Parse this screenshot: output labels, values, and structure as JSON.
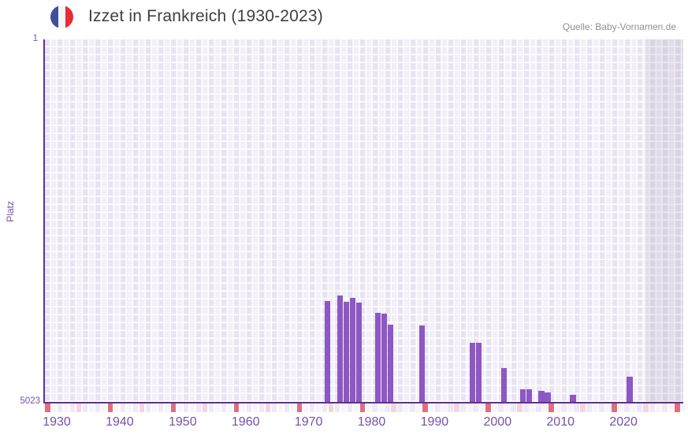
{
  "header": {
    "title": "Izzet in Frankreich (1930-2023)",
    "flag_icon": "france-flag",
    "source": "Quelle: Baby-Vornamen.de"
  },
  "chart_data": {
    "type": "bar",
    "title": "Izzet in Frankreich (1930-2023)",
    "xlabel": "",
    "ylabel": "Platz",
    "y_axis": {
      "top_label": "1",
      "bottom_label": "5023",
      "ylim": [
        1,
        5023
      ],
      "inverted": true,
      "meaning": "rank 1 = best, bars grow up from rank 5023 baseline"
    },
    "x_axis": {
      "tick_labels": [
        "1930",
        "1940",
        "1950",
        "1960",
        "1970",
        "1980",
        "1990",
        "2000",
        "2010",
        "2020"
      ],
      "year_range_with_data": [
        1930,
        2023
      ],
      "shaded_no_data_years": [
        2024,
        2030
      ],
      "decade_marker_color_note": "red square each decade, pink square each half-decade"
    },
    "grid": "on",
    "legend": "none",
    "series": [
      {
        "name": "Platz",
        "points": [
          {
            "year": 1973,
            "rank": 3630
          },
          {
            "year": 1975,
            "rank": 3550
          },
          {
            "year": 1976,
            "rank": 3640
          },
          {
            "year": 1977,
            "rank": 3580
          },
          {
            "year": 1978,
            "rank": 3650
          },
          {
            "year": 1981,
            "rank": 3790
          },
          {
            "year": 1982,
            "rank": 3800
          },
          {
            "year": 1983,
            "rank": 3950
          },
          {
            "year": 1988,
            "rank": 3960
          },
          {
            "year": 1996,
            "rank": 4200
          },
          {
            "year": 1997,
            "rank": 4200
          },
          {
            "year": 2001,
            "rank": 4550
          },
          {
            "year": 2004,
            "rank": 4850
          },
          {
            "year": 2005,
            "rank": 4850
          },
          {
            "year": 2007,
            "rank": 4870
          },
          {
            "year": 2008,
            "rank": 4890
          },
          {
            "year": 2012,
            "rank": 4920
          },
          {
            "year": 2021,
            "rank": 4670
          }
        ]
      }
    ],
    "colors": {
      "bar": "#8d57c4",
      "axis_line": "#5d3192",
      "tick_label": "#7452a6",
      "grid_cell_dark": "#e9e4f3",
      "grid_cell_light": "#f2eff9",
      "decade_marker_red": "#df6f7d",
      "half_decade_marker_pink": "#f3d5df",
      "flag_blue": "#3e4f9f",
      "flag_red": "#e62d34",
      "title_text": "#3f3f3f",
      "source_text": "#8f8f8f"
    }
  }
}
